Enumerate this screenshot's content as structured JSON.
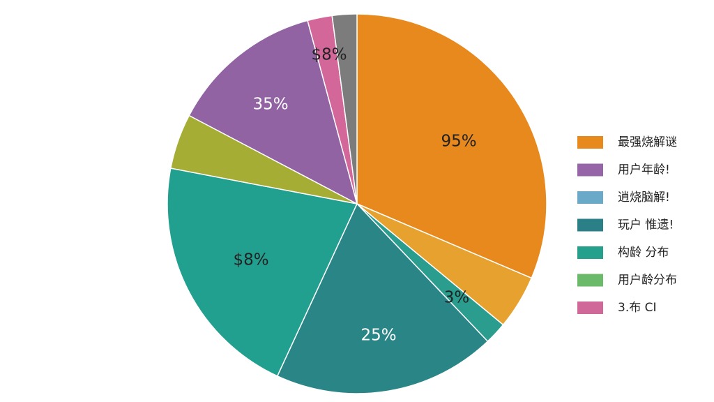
{
  "chart_data": {
    "type": "pie",
    "values": [
      31.4,
      4.6,
      1.9,
      19.0,
      21.1,
      4.7,
      13.1,
      2.1,
      2.1
    ],
    "colors": [
      "#e8891e",
      "#e6a12f",
      "#2a9d8f",
      "#2a8587",
      "#22a08f",
      "#a6ad35",
      "#9263a3",
      "#d4679a",
      "#7c7c7c"
    ],
    "annotations": [
      "95%",
      "3%",
      "25%",
      "$8%",
      "35%",
      "$8%"
    ],
    "annotation_colors": [
      "#222",
      "#222",
      "#fff",
      "#222",
      "#fff",
      "#222"
    ],
    "legend": [
      {
        "label": "最强烧解谜",
        "color": "#e8891e"
      },
      {
        "label": "用户年龄!",
        "color": "#9565a8"
      },
      {
        "label": "逍烧脑解!",
        "color": "#6aaac8"
      },
      {
        "label": "玩户 惟遗!",
        "color": "#2b7f86"
      },
      {
        "label": "构龄 分布",
        "color": "#25a08c"
      },
      {
        "label": "用户龄分布",
        "color": "#6bba6a"
      },
      {
        "label": "3.布 CI",
        "color": "#d0689a"
      }
    ]
  }
}
